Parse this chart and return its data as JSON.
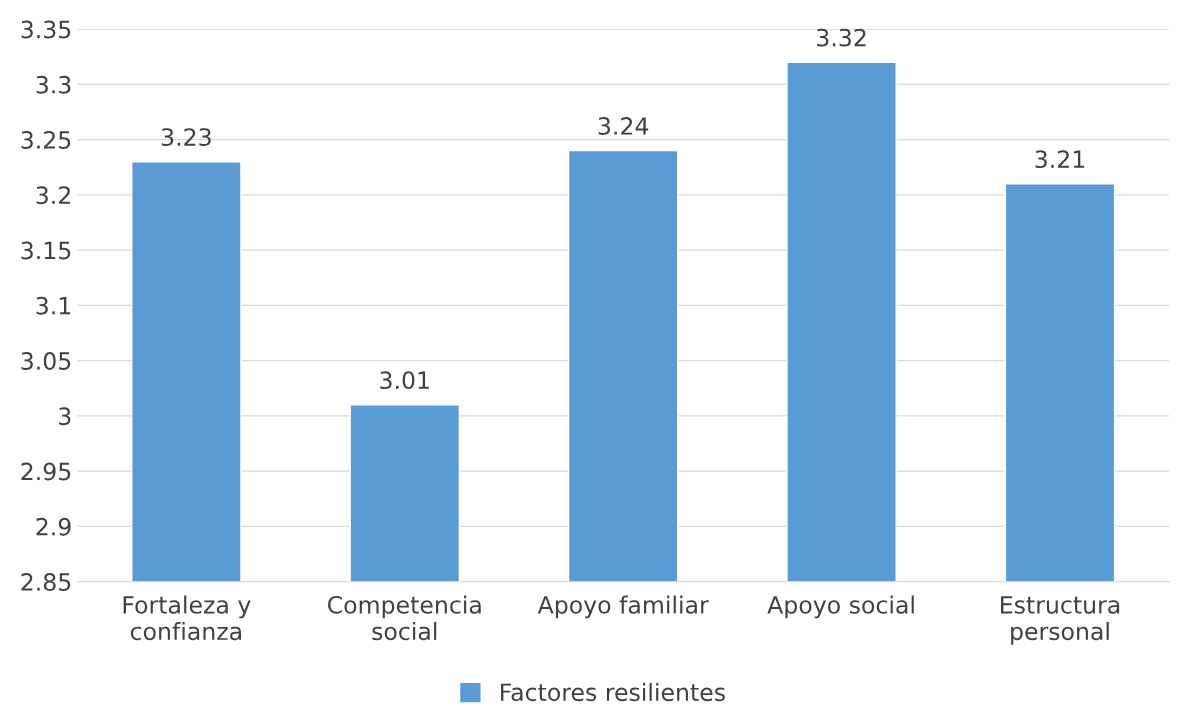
{
  "chart_data": {
    "type": "bar",
    "categories": [
      "Fortaleza y\nconfianza",
      "Competencia\nsocial",
      "Apoyo familiar",
      "Apoyo social",
      "Estructura\npersonal"
    ],
    "series": [
      {
        "name": "Factores resilientes",
        "color": "#5b9bd5",
        "values": [
          3.23,
          3.01,
          3.24,
          3.32,
          3.21
        ]
      }
    ],
    "ylim": [
      2.85,
      3.35
    ],
    "yticks": [
      2.85,
      2.9,
      2.95,
      3,
      3.05,
      3.1,
      3.15,
      3.2,
      3.25,
      3.3,
      3.35
    ],
    "grid": "y",
    "legend": "bottom",
    "data_labels": true
  }
}
